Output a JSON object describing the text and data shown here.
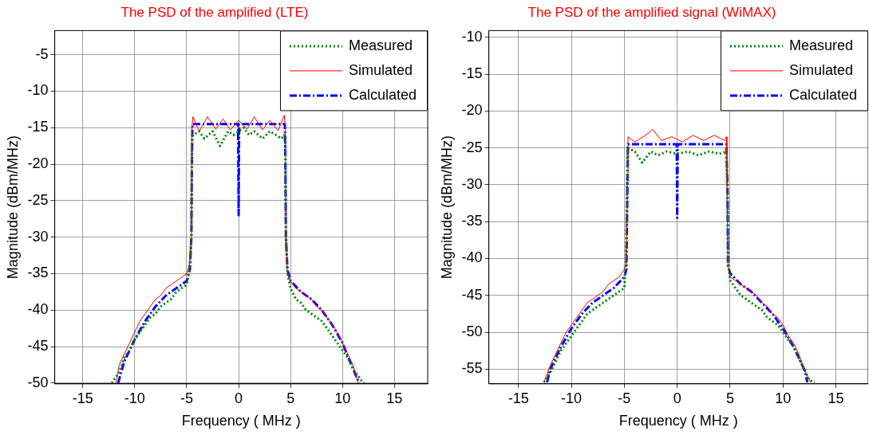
{
  "chart_data": [
    {
      "type": "line",
      "title": "The PSD of the amplified (LTE)",
      "xlabel": "Frequency ( MHz )",
      "ylabel": "Magnitude (dBm/MHz)",
      "xlim": [
        -17.7,
        18.2
      ],
      "ylim": [
        -50.1,
        -1.7
      ],
      "xticks": [
        -15,
        -10,
        -5,
        0,
        5,
        10,
        15
      ],
      "yticks": [
        -50,
        -45,
        -40,
        -35,
        -30,
        -25,
        -20,
        -15,
        -10,
        -5
      ],
      "grid": true,
      "legend": "top right",
      "series": [
        {
          "name": "Measured",
          "color": "#008000",
          "line_style": "dotted",
          "x": [
            -12.2,
            -11.5,
            -11,
            -10.5,
            -10,
            -9.5,
            -9,
            -8.5,
            -8,
            -7.5,
            -7,
            -6.5,
            -6,
            -5.5,
            -5,
            -4.7,
            -4.55,
            -4.5,
            -4.4,
            -3.8,
            -3.3,
            -2.5,
            -1.8,
            -1,
            -0.5,
            0,
            0.5,
            1,
            1.5,
            2.3,
            3,
            3.6,
            4.1,
            4.4,
            4.5,
            4.55,
            4.7,
            5,
            5.5,
            6,
            6.5,
            7,
            7.5,
            8,
            8.5,
            9,
            9.5,
            10,
            10.5,
            11,
            11.5,
            12,
            12.3
          ],
          "values": [
            -50,
            -48.5,
            -46.5,
            -45.5,
            -44,
            -43,
            -42,
            -41,
            -40.5,
            -39.5,
            -39,
            -38.5,
            -37.5,
            -37,
            -36.5,
            -34,
            -30,
            -17,
            -16,
            -15.5,
            -16.5,
            -15.5,
            -17.5,
            -15.5,
            -16,
            -15.5,
            -15,
            -16,
            -15.5,
            -16.5,
            -15.5,
            -16,
            -16.5,
            -16,
            -17,
            -30,
            -35,
            -37,
            -38.5,
            -39,
            -40,
            -40.5,
            -41,
            -41.5,
            -42.5,
            -43.5,
            -44.5,
            -45.5,
            -46.5,
            -48,
            -49,
            -50,
            -50
          ]
        },
        {
          "name": "Simulated",
          "color": "#ff0000",
          "line_style": "solid",
          "x": [
            -11.8,
            -11.5,
            -11,
            -10.5,
            -10,
            -9.5,
            -9,
            -8.5,
            -8,
            -7.5,
            -7,
            -6.5,
            -6,
            -5.5,
            -5,
            -4.7,
            -4.55,
            -4.5,
            -4.4,
            -3.8,
            -3,
            -2.2,
            -1.5,
            -0.8,
            0,
            0.8,
            1.5,
            2.3,
            3,
            3.8,
            4.4,
            4.5,
            4.55,
            4.7,
            5,
            5.5,
            6,
            6.5,
            7,
            7.5,
            8,
            8.5,
            9,
            9.5,
            10,
            10.5,
            11,
            11.5
          ],
          "values": [
            -50,
            -47.5,
            -46,
            -44.5,
            -43,
            -41.5,
            -40.5,
            -39.5,
            -38.5,
            -38,
            -37,
            -36.5,
            -36,
            -35.5,
            -35,
            -33.5,
            -30,
            -15,
            -13.5,
            -15.5,
            -13.5,
            -15.2,
            -13.8,
            -15.3,
            -14,
            -15.2,
            -13.5,
            -15.3,
            -14,
            -15.4,
            -13.3,
            -15,
            -30,
            -35,
            -36,
            -37,
            -37.5,
            -38,
            -38.5,
            -39.5,
            -40,
            -41,
            -42,
            -43,
            -44.5,
            -46,
            -47.5,
            -50
          ]
        },
        {
          "name": "Calculated",
          "color": "#0000ff",
          "line_style": "dashed",
          "x": [
            -11.6,
            -11,
            -10,
            -9,
            -8,
            -7,
            -6,
            -5,
            -4.7,
            -4.55,
            -4.5,
            -4.45,
            -2,
            -0.05,
            0,
            0.05,
            2,
            4.45,
            4.5,
            4.55,
            4.7,
            5,
            6,
            7,
            8,
            9,
            10,
            11,
            11.6
          ],
          "values": [
            -50,
            -47,
            -44,
            -41.5,
            -39.5,
            -38,
            -37,
            -36,
            -34.5,
            -30,
            -20,
            -14.5,
            -14.5,
            -14.5,
            -27,
            -14.5,
            -14.5,
            -14.5,
            -20,
            -30,
            -34.5,
            -36,
            -37.5,
            -38.5,
            -40,
            -42,
            -44.5,
            -48,
            -50
          ]
        }
      ]
    },
    {
      "type": "line",
      "title": "The PSD of the amplified signal (WiMAX)",
      "xlabel": "Frequency ( MHz )",
      "ylabel": "Magnitude (dBm/MHz)",
      "xlim": [
        -17.8,
        18.05
      ],
      "ylim": [
        -57,
        -9.1
      ],
      "xticks": [
        -15,
        -10,
        -5,
        0,
        5,
        10,
        15
      ],
      "yticks": [
        -55,
        -50,
        -45,
        -40,
        -35,
        -30,
        -25,
        -20,
        -15,
        -10
      ],
      "grid": true,
      "legend": "top right",
      "series": [
        {
          "name": "Measured",
          "color": "#008000",
          "line_style": "dotted",
          "x": [
            -12.6,
            -12,
            -11.5,
            -11,
            -10.5,
            -10,
            -9.5,
            -9,
            -8.5,
            -8,
            -7.5,
            -7,
            -6.5,
            -6,
            -5.5,
            -5,
            -4.85,
            -4.75,
            -4.7,
            -4,
            -3.3,
            -2.5,
            -1.8,
            -1,
            0,
            1,
            2,
            3,
            4,
            4.6,
            4.75,
            4.85,
            5,
            5.5,
            6,
            6.5,
            7,
            7.5,
            8,
            8.5,
            9,
            9.5,
            10,
            10.5,
            11,
            11.5,
            12,
            12.5,
            13
          ],
          "values": [
            -56.8,
            -55.5,
            -54,
            -52.5,
            -51.5,
            -50.5,
            -49.5,
            -48.5,
            -47.5,
            -47,
            -46.5,
            -46,
            -45.5,
            -45,
            -44.5,
            -44,
            -41,
            -30,
            -25,
            -25.5,
            -27,
            -25.5,
            -26,
            -25.5,
            -25.8,
            -25.5,
            -26,
            -25.5,
            -25.8,
            -25.5,
            -30,
            -41,
            -43,
            -44,
            -45,
            -45.5,
            -46,
            -46.5,
            -47,
            -48,
            -48.5,
            -49,
            -50,
            -51,
            -52,
            -53.5,
            -55,
            -56.5,
            -56.8
          ]
        },
        {
          "name": "Simulated",
          "color": "#ff0000",
          "line_style": "solid",
          "x": [
            -12.6,
            -12,
            -11.5,
            -11,
            -10.5,
            -10,
            -9.5,
            -9,
            -8.5,
            -8,
            -7.5,
            -7,
            -6.5,
            -6,
            -5.5,
            -5,
            -4.8,
            -4.7,
            -4.65,
            -4,
            -3,
            -2.3,
            -1.5,
            -0.5,
            0.5,
            1.5,
            2.5,
            3.5,
            4.5,
            4.65,
            4.7,
            4.8,
            5,
            5.5,
            6,
            6.5,
            7,
            7.5,
            8,
            8.5,
            9,
            9.5,
            10,
            10.5,
            11,
            11.5,
            12,
            12.6
          ],
          "values": [
            -56.8,
            -54.5,
            -53,
            -51.5,
            -50,
            -49,
            -48,
            -47,
            -46,
            -45.5,
            -45,
            -44.5,
            -43.5,
            -43,
            -42.5,
            -41.5,
            -40.5,
            -30,
            -23.5,
            -24.2,
            -23.3,
            -22.5,
            -24,
            -23.5,
            -24.2,
            -23.3,
            -24,
            -23.3,
            -24,
            -23.5,
            -30,
            -41,
            -42.5,
            -43,
            -43.5,
            -44,
            -44.5,
            -45,
            -46,
            -46.5,
            -47.5,
            -48,
            -49,
            -50.5,
            -51.5,
            -53,
            -55,
            -56.8
          ]
        },
        {
          "name": "Calculated",
          "color": "#0000ff",
          "line_style": "dashed",
          "x": [
            -12.3,
            -12,
            -11,
            -10,
            -9,
            -8,
            -7,
            -6,
            -5,
            -4.8,
            -4.7,
            -4.65,
            -2,
            -0.05,
            0,
            0.05,
            2,
            4.65,
            4.75,
            4.8,
            5,
            6,
            7,
            8,
            9,
            10,
            11,
            12,
            12.3
          ],
          "values": [
            -56.8,
            -55,
            -52,
            -49.5,
            -47.5,
            -46,
            -45,
            -44,
            -42.5,
            -41.5,
            -30,
            -24.5,
            -24.5,
            -24.5,
            -34.5,
            -24.5,
            -24.5,
            -24.5,
            -30,
            -41,
            -42,
            -43.5,
            -44.5,
            -46,
            -47.5,
            -49.5,
            -52,
            -55,
            -56.8
          ]
        }
      ]
    }
  ]
}
